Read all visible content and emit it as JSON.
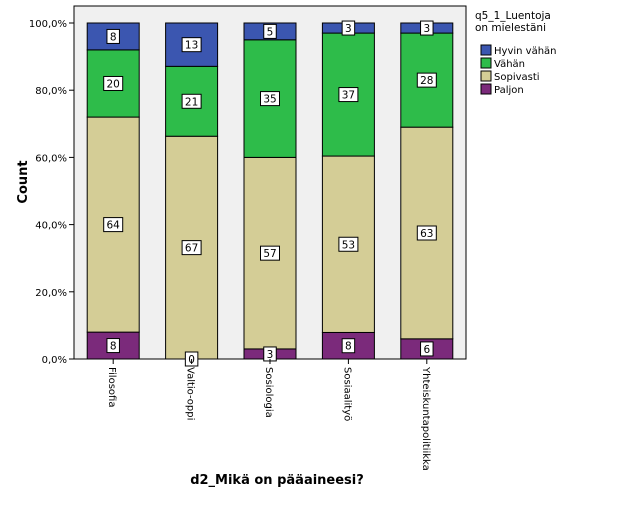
{
  "chart_data": {
    "type": "bar",
    "stacked": true,
    "orientation": "vertical",
    "percent_scale": true,
    "xlabel": "d2_Mikä on pääaineesi?",
    "ylabel": "Count",
    "ylim": [
      0,
      100
    ],
    "y_ticks": [
      "0,0%",
      "20,0%",
      "40,0%",
      "60,0%",
      "80,0%",
      "100,0%"
    ],
    "y_tick_values": [
      0,
      20,
      40,
      60,
      80,
      100
    ],
    "grid": false,
    "legend": {
      "title_lines": [
        "q5_1_Luentoja",
        "on mielestäni"
      ],
      "placement": "right"
    },
    "categories": [
      "Filosofia",
      "Valtio-oppi",
      "Sosiologia",
      "Sosiaalityö",
      "Yhteiskuntapolitiikka"
    ],
    "series": [
      {
        "name": "Paljon",
        "color": "#7b2a7b",
        "counts": [
          8,
          0,
          3,
          8,
          6
        ],
        "percent": [
          8.0,
          0.0,
          3.0,
          7.9,
          6.0
        ]
      },
      {
        "name": "Sopivasti",
        "color": "#d4cd96",
        "counts": [
          64,
          67,
          57,
          53,
          63
        ],
        "percent": [
          64.0,
          66.3,
          57.0,
          52.5,
          63.0
        ]
      },
      {
        "name": "Vähän",
        "color": "#2ebc4a",
        "counts": [
          20,
          21,
          35,
          37,
          28
        ],
        "percent": [
          20.0,
          20.8,
          35.0,
          36.6,
          28.0
        ]
      },
      {
        "name": "Hyvin vähän",
        "color": "#3b56b0",
        "counts": [
          8,
          13,
          5,
          3,
          3
        ],
        "percent": [
          8.0,
          12.9,
          5.0,
          3.0,
          3.0
        ]
      }
    ],
    "legend_order": [
      "Hyvin vähän",
      "Vähän",
      "Sopivasti",
      "Paljon"
    ]
  }
}
